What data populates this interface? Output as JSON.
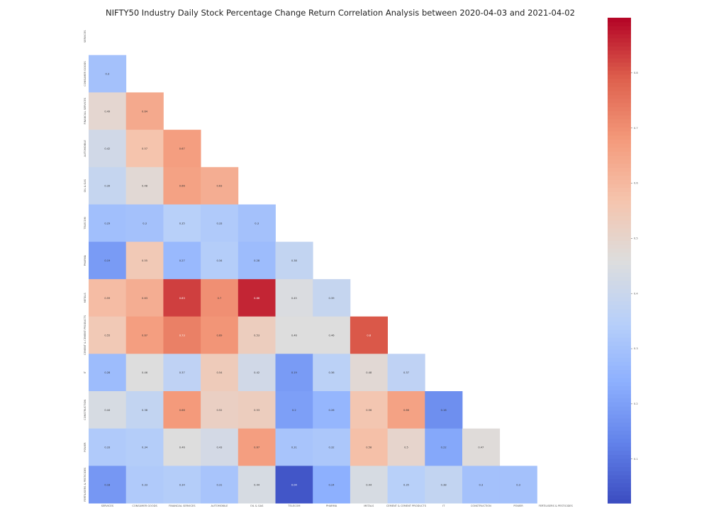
{
  "chart_data": {
    "type": "heatmap",
    "title": "NIFTY50 Industry Daily Stock Percentage Change Return Correlation Analysis between 2020-04-03 and 2021-04-02",
    "mask": "upper-triangle (lower triangle shown, diagonal hidden)",
    "row_labels": [
      "SERVICES",
      "CONSUMER GOODS",
      "FINANCIAL SERVICES",
      "AUTOMOBILE",
      "OIL & GAS",
      "TELECOM",
      "PHARMA",
      "METALS",
      "CEMENT & CEMENT PRODUCTS",
      "IT",
      "CONSTRUCTION",
      "POWER",
      "FERTILISERS & PESTICIDES"
    ],
    "col_labels": [
      "SERVICES",
      "CONSUMER GOODS",
      "FINANCIAL SERVICES",
      "AUTOMOBILE",
      "OIL & GAS",
      "TELECOM",
      "PHARMA",
      "METALS",
      "CEMENT & CEMENT PRODUCTS",
      "IT",
      "CONSTRUCTION",
      "POWER",
      "FERTILISERS & PESTICIDES"
    ],
    "values": [
      [],
      [
        0.3
      ],
      [
        0.49,
        0.64
      ],
      [
        0.42,
        0.57,
        0.67
      ],
      [
        0.39,
        0.48,
        0.66,
        0.63
      ],
      [
        0.29,
        0.3,
        0.35,
        0.33,
        0.3
      ],
      [
        0.19,
        0.55,
        0.27,
        0.34,
        0.28,
        0.38
      ],
      [
        0.59,
        0.63,
        0.83,
        0.7,
        0.86,
        0.45,
        0.39
      ],
      [
        0.55,
        0.67,
        0.73,
        0.69,
        0.53,
        0.46,
        0.46,
        0.8
      ],
      [
        0.28,
        0.46,
        0.37,
        0.54,
        0.42,
        0.19,
        0.36,
        0.48,
        0.37
      ],
      [
        0.44,
        0.38,
        0.68,
        0.52,
        0.53,
        0.2,
        0.26,
        0.56,
        0.66,
        0.16
      ],
      [
        0.33,
        0.34,
        0.46,
        0.43,
        0.67,
        0.31,
        0.32,
        0.58,
        0.5,
        0.22,
        0.47
      ],
      [
        0.18,
        0.33,
        0.34,
        0.31,
        0.44,
        0.04,
        0.24,
        0.44,
        0.35,
        0.38,
        0.3,
        0.3
      ]
    ],
    "colormap": "coolwarm",
    "vmin": 0.02,
    "vmax": 0.9,
    "colorbar_ticks": [
      0.1,
      0.2,
      0.3,
      0.4,
      0.5,
      0.6,
      0.7,
      0.8
    ]
  }
}
